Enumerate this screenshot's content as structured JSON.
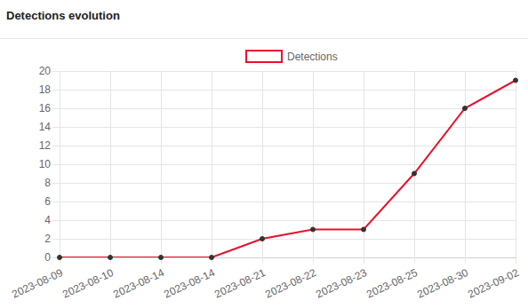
{
  "chart_data": {
    "type": "line",
    "title": "Detections evolution",
    "categories": [
      "2023-08-09",
      "2023-08-10",
      "2023-08-14",
      "2023-08-14",
      "2023-08-21",
      "2023-08-22",
      "2023-08-23",
      "2023-08-25",
      "2023-08-30",
      "2023-09-02"
    ],
    "series": [
      {
        "name": "Detections",
        "color": "#e8112d",
        "values": [
          0,
          0,
          0,
          0,
          2,
          3,
          3,
          9,
          16,
          19
        ]
      }
    ],
    "ylim": [
      0,
      20
    ],
    "yticks": [
      0,
      2,
      4,
      6,
      8,
      10,
      12,
      14,
      16,
      18,
      20
    ],
    "grid": true,
    "legend": "top",
    "marker": "circle"
  }
}
